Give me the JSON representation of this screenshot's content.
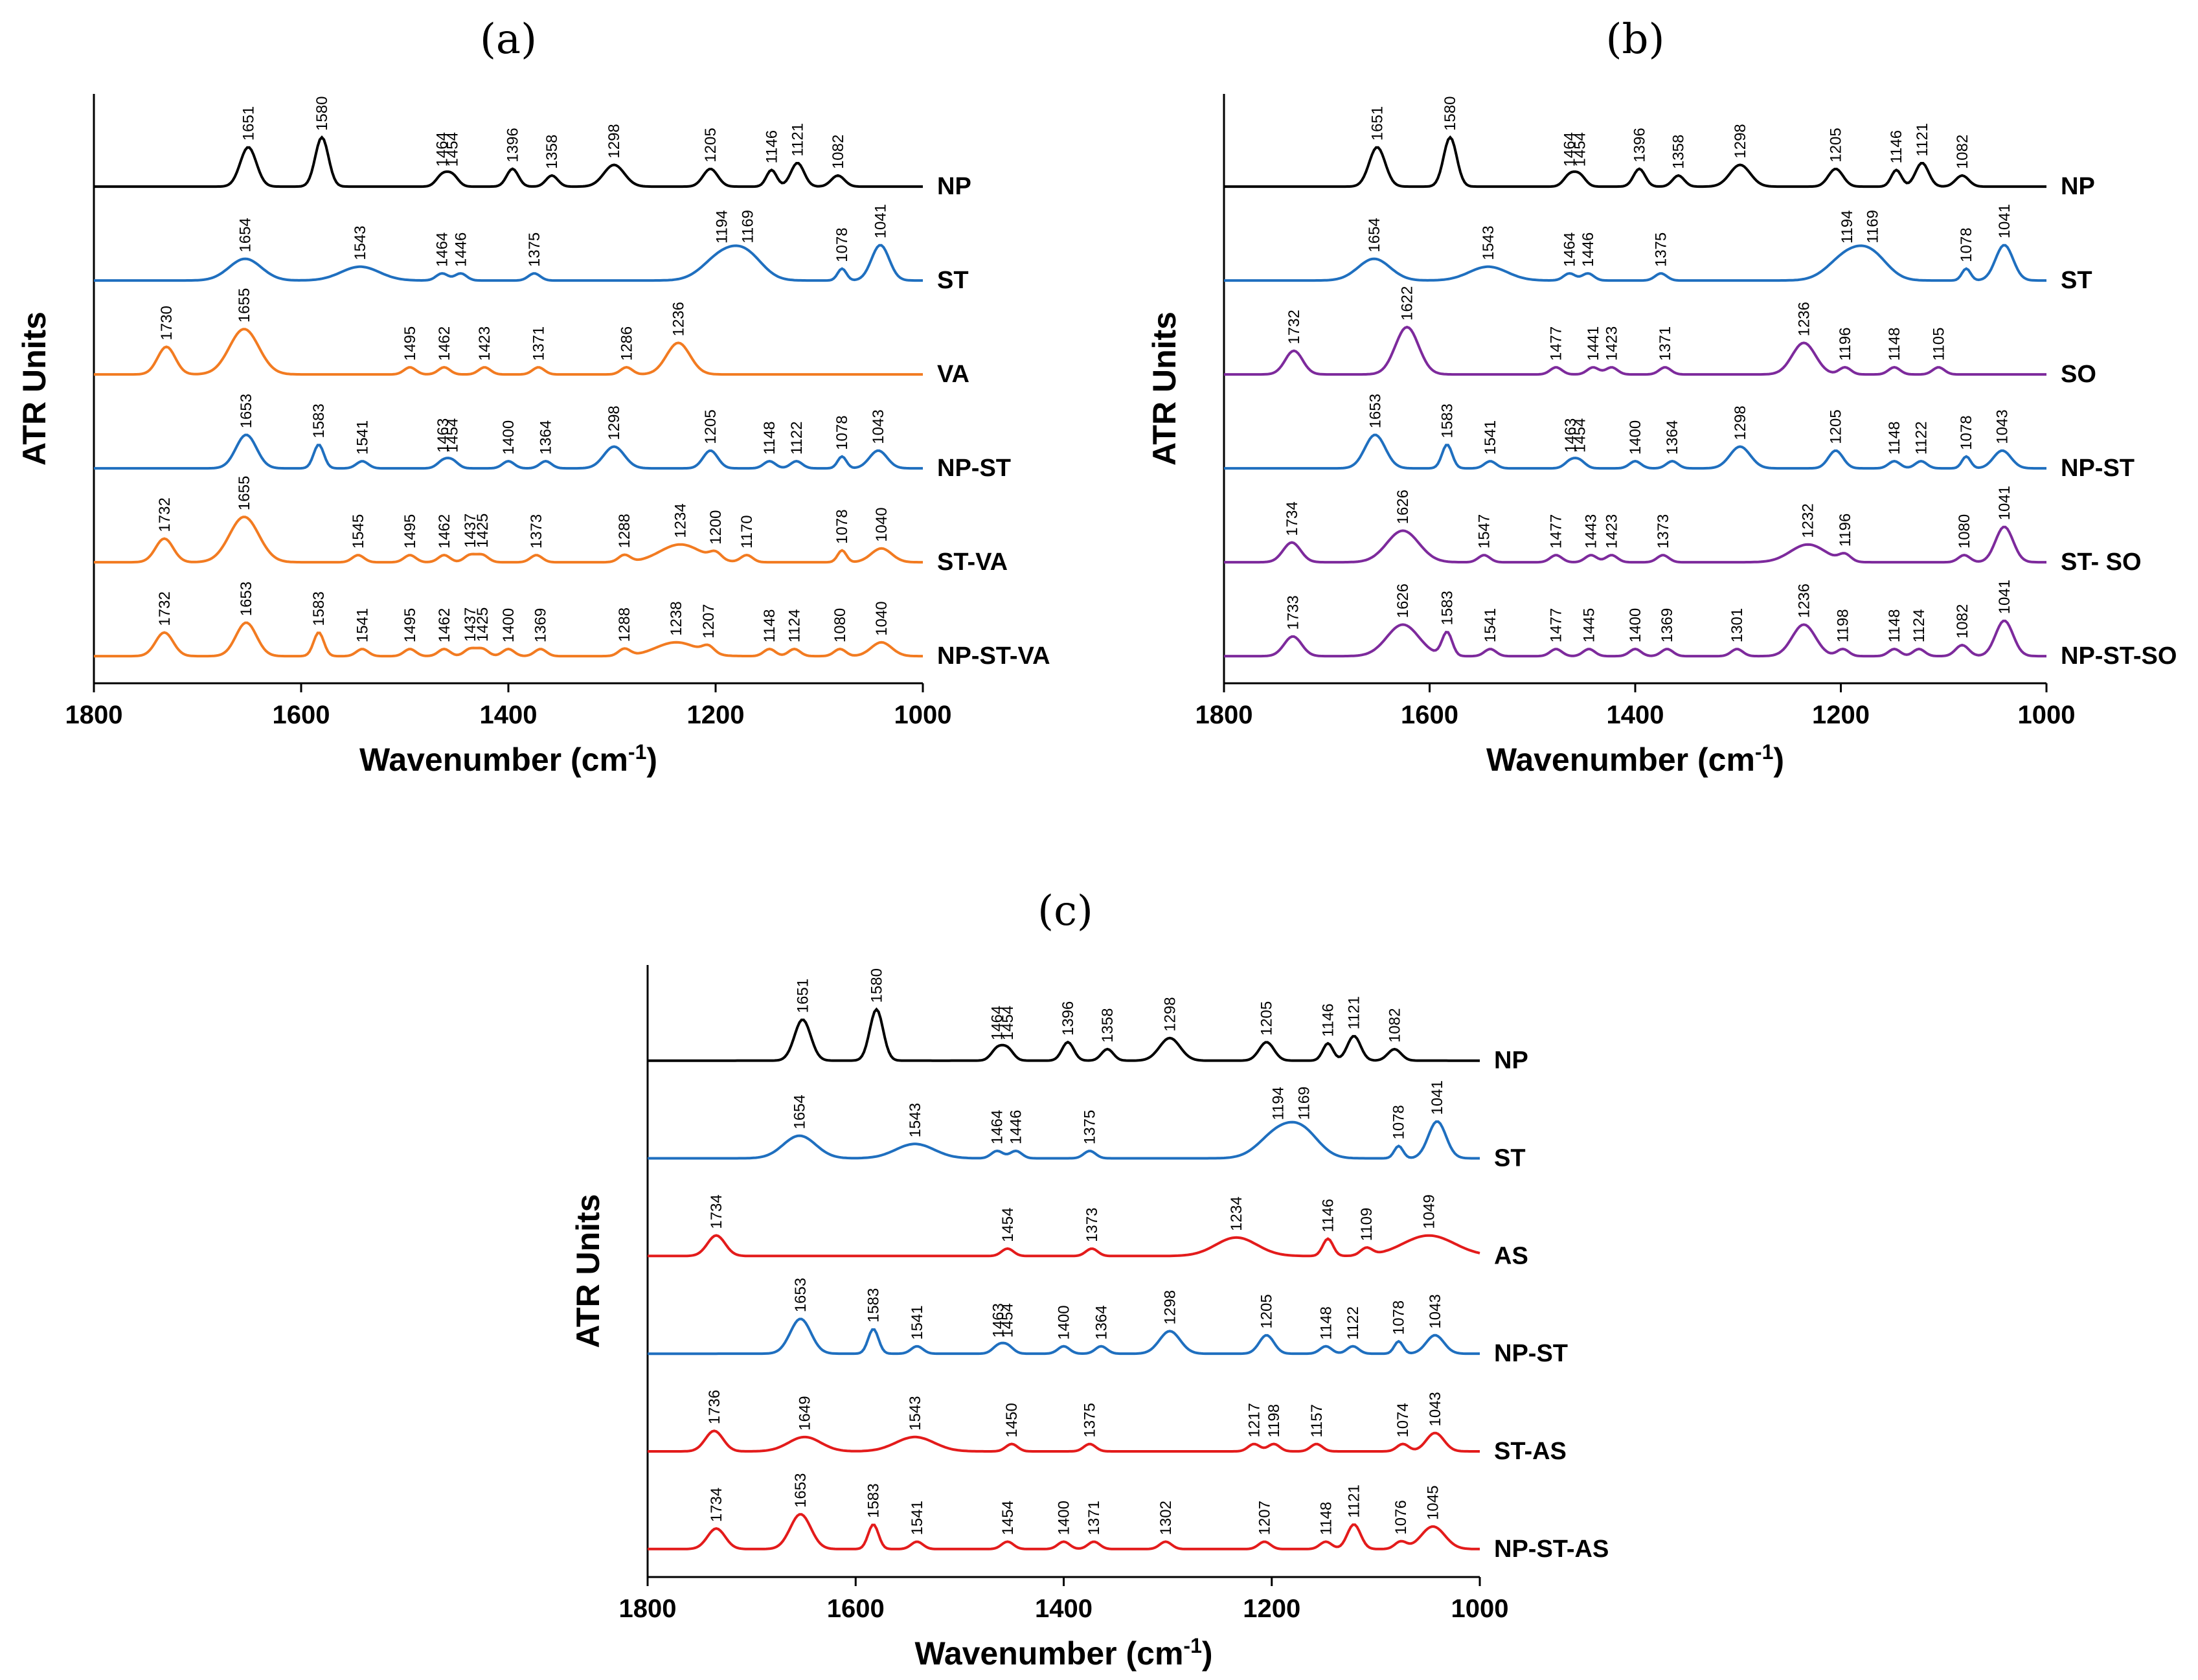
{
  "colors": {
    "black": "#000000",
    "blue": "#1f6fbf",
    "orange": "#f27b21",
    "purple": "#7d2a9c",
    "red": "#e31b1b"
  },
  "chart_data": [
    {
      "type": "line",
      "panel": "(a)",
      "xlabel": "Wavenumber (cm",
      "xlabel_sup": "-1",
      "xlabel_close": ")",
      "ylabel": "ATR Units",
      "xlim": [
        1800,
        1000
      ],
      "xticks": [
        "1800",
        "1600",
        "1400",
        "1200",
        "1000"
      ],
      "grid": false,
      "series": [
        {
          "name": "NP",
          "color": "black",
          "peaks": [
            1651,
            1580,
            1464,
            1454,
            1396,
            1358,
            1298,
            1205,
            1146,
            1121,
            1082
          ]
        },
        {
          "name": "ST",
          "color": "blue",
          "peaks": [
            1654,
            1543,
            1464,
            1446,
            1375,
            1194,
            1169,
            1078,
            1041
          ]
        },
        {
          "name": "VA",
          "color": "orange",
          "peaks": [
            1730,
            1655,
            1495,
            1462,
            1423,
            1371,
            1286,
            1236
          ]
        },
        {
          "name": "NP-ST",
          "color": "blue",
          "peaks": [
            1653,
            1583,
            1541,
            1463,
            1454,
            1400,
            1364,
            1298,
            1205,
            1148,
            1122,
            1078,
            1043
          ]
        },
        {
          "name": "ST-VA",
          "color": "orange",
          "peaks": [
            1732,
            1655,
            1545,
            1495,
            1462,
            1437,
            1425,
            1373,
            1288,
            1234,
            1200,
            1170,
            1078,
            1040
          ]
        },
        {
          "name": "NP-ST-VA",
          "color": "orange",
          "peaks": [
            1732,
            1653,
            1583,
            1541,
            1495,
            1462,
            1437,
            1425,
            1400,
            1369,
            1288,
            1238,
            1207,
            1148,
            1124,
            1080,
            1040
          ]
        }
      ]
    },
    {
      "type": "line",
      "panel": "(b)",
      "xlabel": "Wavenumber (cm",
      "xlabel_sup": "-1",
      "xlabel_close": ")",
      "ylabel": "ATR Units",
      "xlim": [
        1800,
        1000
      ],
      "xticks": [
        "1800",
        "1600",
        "1400",
        "1200",
        "1000"
      ],
      "grid": false,
      "series": [
        {
          "name": "NP",
          "color": "black",
          "peaks": [
            1651,
            1580,
            1464,
            1454,
            1396,
            1358,
            1298,
            1205,
            1146,
            1121,
            1082
          ]
        },
        {
          "name": "ST",
          "color": "blue",
          "peaks": [
            1654,
            1543,
            1464,
            1446,
            1375,
            1194,
            1169,
            1078,
            1041
          ]
        },
        {
          "name": "SO",
          "color": "purple",
          "peaks": [
            1732,
            1622,
            1477,
            1441,
            1423,
            1371,
            1236,
            1196,
            1148,
            1105
          ]
        },
        {
          "name": "NP-ST",
          "color": "blue",
          "peaks": [
            1653,
            1583,
            1541,
            1463,
            1454,
            1400,
            1364,
            1298,
            1205,
            1148,
            1122,
            1078,
            1043
          ]
        },
        {
          "name": "ST- SO",
          "color": "purple",
          "peaks": [
            1734,
            1626,
            1547,
            1477,
            1443,
            1423,
            1373,
            1232,
            1196,
            1080,
            1041
          ]
        },
        {
          "name": "NP-ST-SO",
          "color": "purple",
          "peaks": [
            1733,
            1626,
            1583,
            1541,
            1477,
            1445,
            1400,
            1369,
            1301,
            1236,
            1198,
            1148,
            1124,
            1082,
            1041
          ]
        }
      ]
    },
    {
      "type": "line",
      "panel": "(c)",
      "xlabel": "Wavenumber (cm",
      "xlabel_sup": "-1",
      "xlabel_close": ")",
      "ylabel": "ATR Units",
      "xlim": [
        1800,
        1000
      ],
      "xticks": [
        "1800",
        "1600",
        "1400",
        "1200",
        "1000"
      ],
      "grid": false,
      "series": [
        {
          "name": "NP",
          "color": "black",
          "peaks": [
            1651,
            1580,
            1464,
            1454,
            1396,
            1358,
            1298,
            1205,
            1146,
            1121,
            1082
          ]
        },
        {
          "name": "ST",
          "color": "blue",
          "peaks": [
            1654,
            1543,
            1464,
            1446,
            1375,
            1194,
            1169,
            1078,
            1041
          ]
        },
        {
          "name": "AS",
          "color": "red",
          "peaks": [
            1734,
            1454,
            1373,
            1234,
            1146,
            1109,
            1049
          ]
        },
        {
          "name": "NP-ST",
          "color": "blue",
          "peaks": [
            1653,
            1583,
            1541,
            1463,
            1454,
            1400,
            1364,
            1298,
            1205,
            1148,
            1122,
            1078,
            1043
          ]
        },
        {
          "name": "ST-AS",
          "color": "red",
          "peaks": [
            1736,
            1649,
            1543,
            1450,
            1375,
            1217,
            1198,
            1157,
            1074,
            1043
          ]
        },
        {
          "name": "NP-ST-AS",
          "color": "red",
          "peaks": [
            1734,
            1653,
            1583,
            1541,
            1454,
            1400,
            1371,
            1302,
            1207,
            1148,
            1121,
            1076,
            1045
          ]
        }
      ]
    }
  ]
}
